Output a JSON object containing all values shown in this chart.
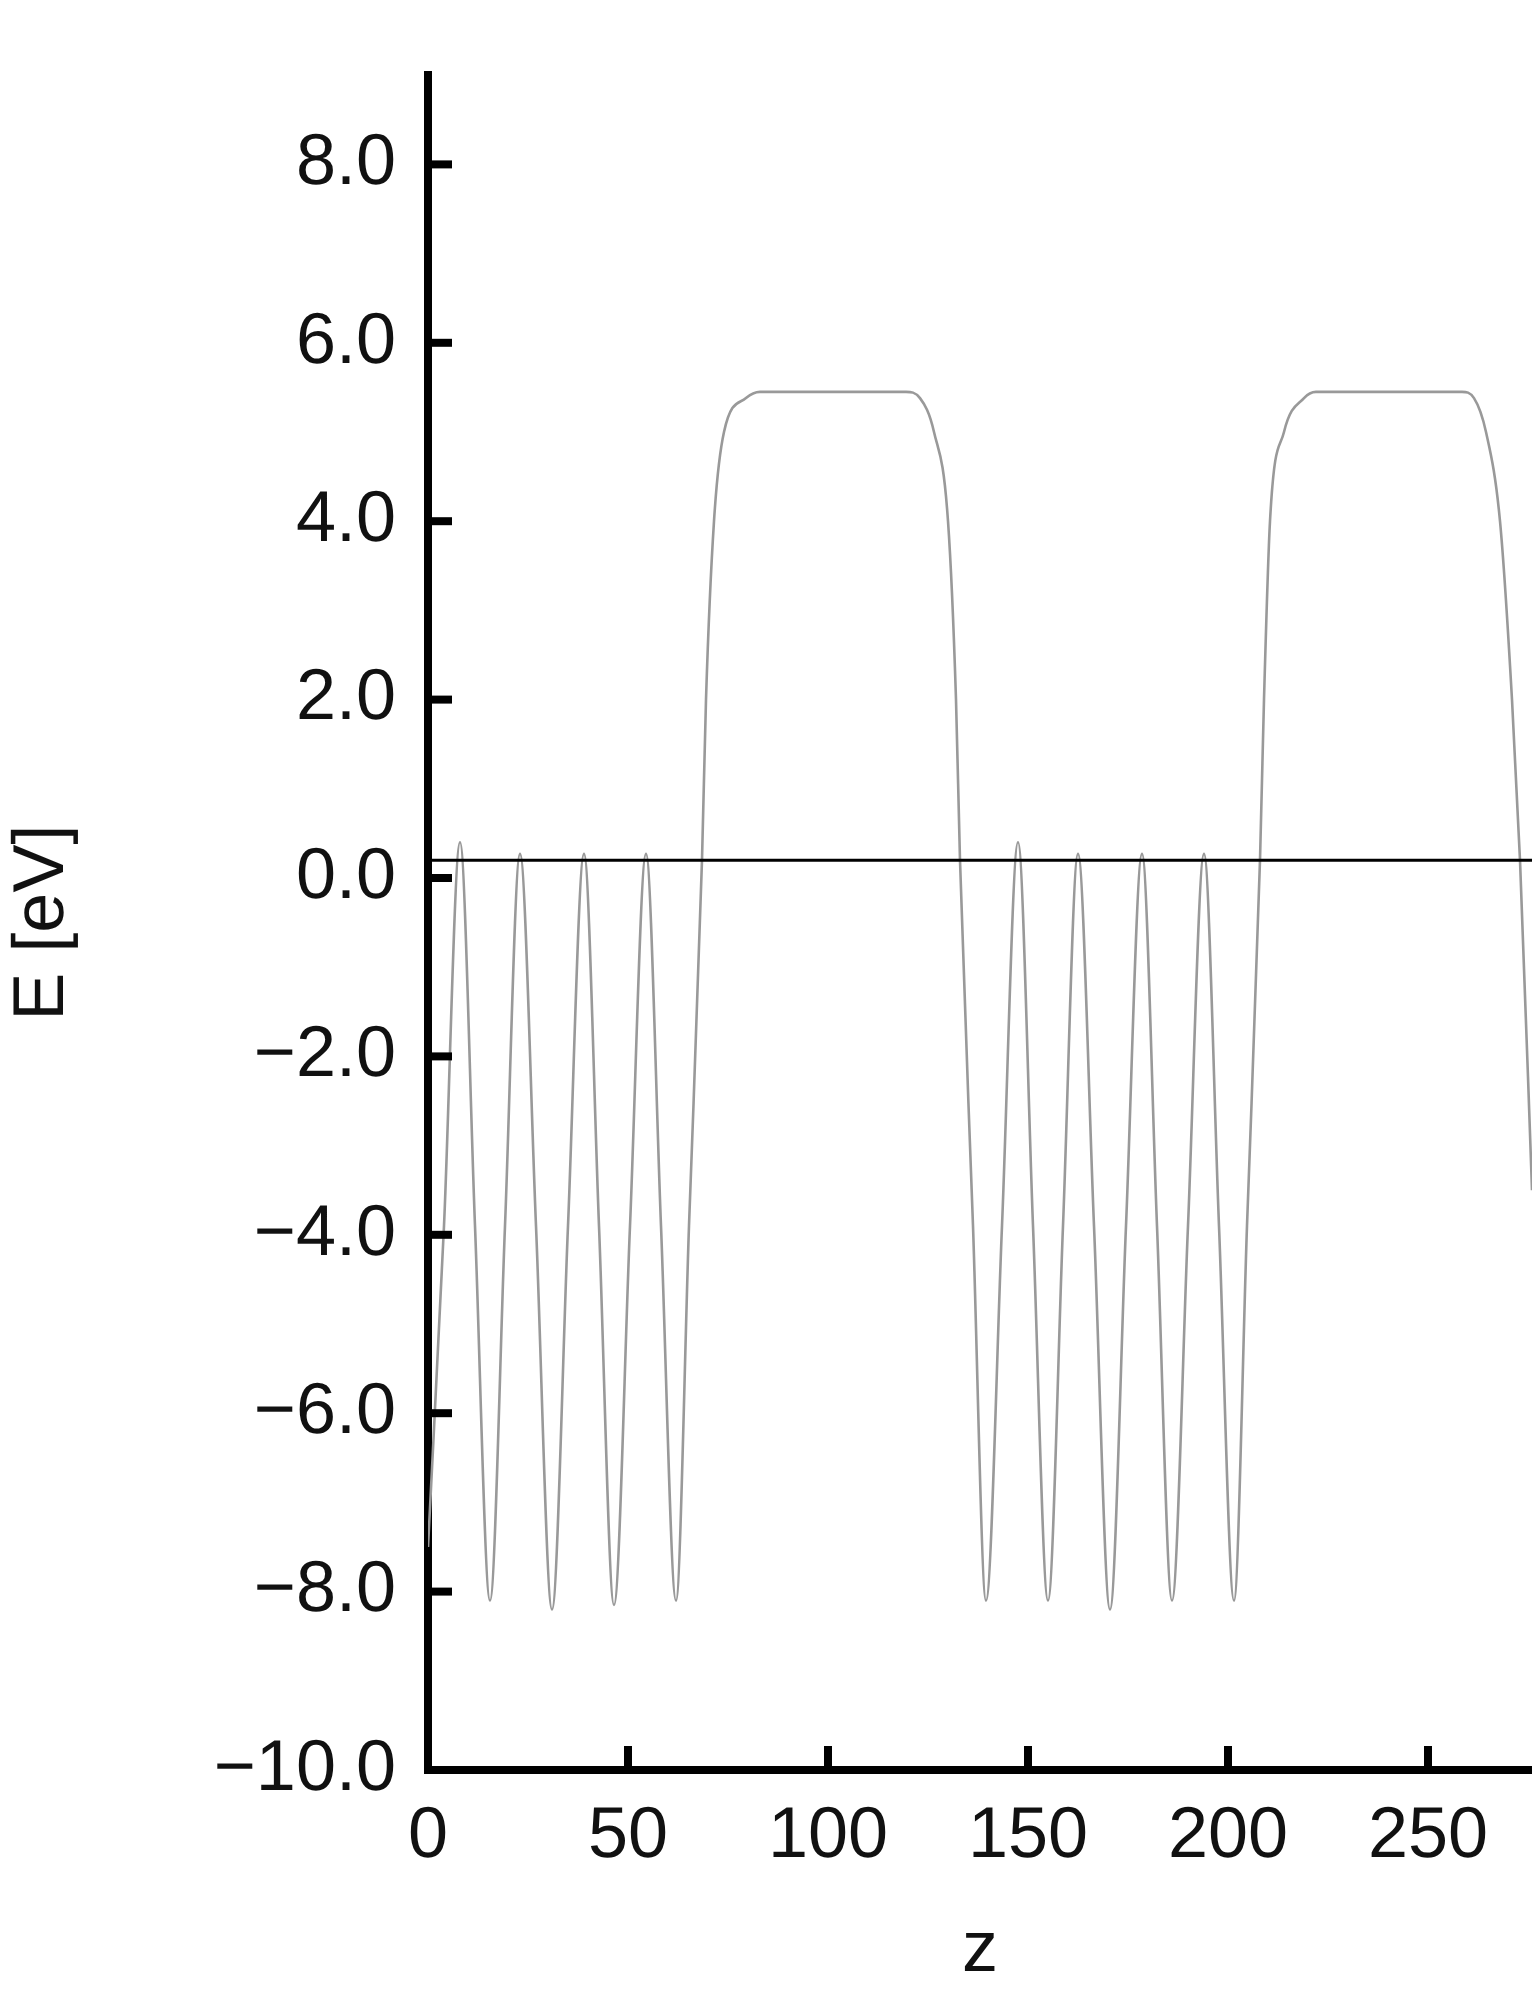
{
  "chart_data": {
    "type": "line",
    "xlabel": "z",
    "ylabel": "E [eV]",
    "xlim": [
      0,
      276
    ],
    "xticks": [
      0,
      50,
      100,
      150,
      200,
      250
    ],
    "ylim": [
      -10,
      9
    ],
    "yticks": [
      {
        "value": -10,
        "label": "−10.0"
      },
      {
        "value": -8,
        "label": "−8.0"
      },
      {
        "value": -6,
        "label": "−6.0"
      },
      {
        "value": -4,
        "label": "−4.0"
      },
      {
        "value": -2,
        "label": "−2.0"
      },
      {
        "value": 0,
        "label": "0.0"
      },
      {
        "value": 2,
        "label": "2.0"
      },
      {
        "value": 4,
        "label": "4.0"
      },
      {
        "value": 6,
        "label": "6.0"
      },
      {
        "value": 8,
        "label": "8.0"
      }
    ],
    "grid": false,
    "legend": false,
    "marker": "none",
    "line_style": "solid",
    "ref_lines": [
      {
        "axis": "y",
        "value": 0.2,
        "color": "#000000"
      }
    ],
    "series": [
      {
        "color": "#999999",
        "x": [
          0,
          4,
          8,
          11.75,
          15.5,
          19.25,
          23,
          27,
          31,
          35,
          39,
          42.75,
          46.5,
          50.5,
          54.5,
          58.25,
          62,
          65.25,
          68.5,
          69.5,
          71.5,
          74,
          79.5,
          83,
          101,
          119.5,
          123,
          126.5,
          130,
          132,
          133,
          136.25,
          139.5,
          143.5,
          147.5,
          151.25,
          155,
          158.75,
          162.5,
          166.5,
          170.5,
          174.5,
          178.5,
          182.25,
          186,
          190,
          194,
          197.75,
          201.5,
          204.75,
          208,
          209,
          210.5,
          214,
          219,
          222,
          240,
          258.5,
          261.5,
          264.5,
          268,
          271,
          273,
          276
        ],
        "values": [
          -7.5,
          -3.9,
          0.4,
          -3.9,
          -8.1,
          -3.9,
          0.27,
          -3.9,
          -8.2,
          -3.9,
          0.27,
          -3.9,
          -8.15,
          -3.9,
          0.27,
          -3.9,
          -8.1,
          -3.9,
          0.2,
          2.0,
          4.0,
          5.0,
          5.38,
          5.45,
          5.45,
          5.45,
          5.38,
          5.0,
          4.0,
          2.0,
          0.2,
          -3.9,
          -8.1,
          -3.9,
          0.4,
          -3.9,
          -8.1,
          -3.9,
          0.27,
          -3.9,
          -8.2,
          -3.9,
          0.27,
          -3.9,
          -8.1,
          -3.9,
          0.27,
          -3.9,
          -8.1,
          -3.9,
          0.2,
          2.0,
          4.0,
          5.0,
          5.38,
          5.45,
          5.45,
          5.45,
          5.38,
          5.0,
          4.0,
          2.0,
          0.2,
          -3.5
        ]
      }
    ]
  }
}
